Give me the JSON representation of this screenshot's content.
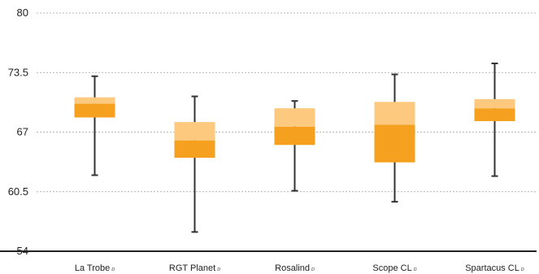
{
  "chart_data": {
    "type": "box",
    "y_ticks": [
      "80",
      "73.5",
      "67",
      "60.5",
      "54"
    ],
    "y_tick_values": [
      80,
      73.5,
      67,
      60.5,
      54
    ],
    "ylim": [
      54,
      80
    ],
    "grid": true,
    "categories": [
      {
        "label": "La Trobe",
        "suffix": "ɒ"
      },
      {
        "label": "RGT Planet",
        "suffix": "ɒ"
      },
      {
        "label": "Rosalind",
        "suffix": "ɒ"
      },
      {
        "label": "Scope CL",
        "suffix": "ɒ"
      },
      {
        "label": "Spartacus CL",
        "suffix": "ɒ"
      }
    ],
    "boxes": [
      {
        "min": 62.3,
        "q1": 68.6,
        "median": 70.1,
        "q3": 70.8,
        "max": 73.1
      },
      {
        "min": 56.1,
        "q1": 64.2,
        "median": 66.1,
        "q3": 68.1,
        "max": 70.9
      },
      {
        "min": 60.6,
        "q1": 65.6,
        "median": 67.6,
        "q3": 69.6,
        "max": 70.4
      },
      {
        "min": 59.4,
        "q1": 63.7,
        "median": 67.8,
        "q3": 70.3,
        "max": 73.3
      },
      {
        "min": 62.2,
        "q1": 68.2,
        "median": 69.6,
        "q3": 70.6,
        "max": 74.5
      }
    ],
    "colors": {
      "lower_box": "#f5a11f",
      "upper_box": "#fcc97e",
      "whisker": "#333333",
      "grid": "#b5b5b5",
      "axis": "#222222"
    }
  }
}
